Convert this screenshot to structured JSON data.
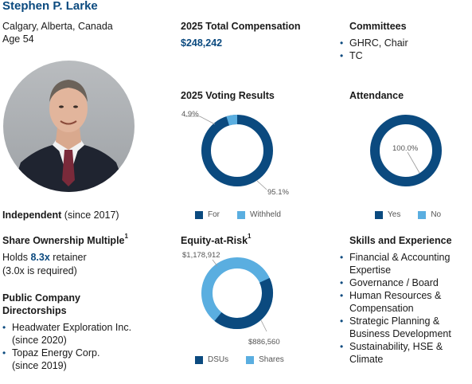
{
  "profile": {
    "name": "Stephen P. Larke",
    "location": "Calgary, Alberta, Canada",
    "age": "Age 54",
    "independent_label": "Independent",
    "independent_since": "(since 2017)"
  },
  "share_ownership": {
    "heading": "Share Ownership Multiple",
    "heading_sup": "1",
    "holds_prefix": "Holds",
    "multiple": "8.3x",
    "holds_suffix": "retainer",
    "required": "(3.0x is required)"
  },
  "directorships": {
    "heading_line1": "Public Company",
    "heading_line2": "Directorships",
    "items": [
      {
        "line1": "Headwater Exploration Inc.",
        "line2": "(since 2020)"
      },
      {
        "line1": "Topaz Energy Corp.",
        "line2": "(since 2019)"
      }
    ]
  },
  "compensation": {
    "heading": "2025 Total Compensation",
    "value": "$248,242"
  },
  "committees": {
    "heading": "Committees",
    "items": [
      "GHRC, Chair",
      "TC"
    ]
  },
  "voting": {
    "heading": "2025 Voting Results",
    "for_label": "95.1%",
    "withheld_label": "4.9%",
    "legend_for": "For",
    "legend_withheld": "Withheld"
  },
  "attendance": {
    "heading": "Attendance",
    "yes_label": "100.0%",
    "legend_yes": "Yes",
    "legend_no": "No"
  },
  "equity": {
    "heading": "Equity-at-Risk",
    "heading_sup": "1",
    "shares_label": "$1,178,912",
    "dsus_label": "$886,560",
    "legend_dsus": "DSUs",
    "legend_shares": "Shares"
  },
  "skills": {
    "heading": "Skills and Experience",
    "items": [
      {
        "line1": "Financial & Accounting",
        "line2": "Expertise"
      },
      {
        "line1": "Governance / Board",
        "line2": ""
      },
      {
        "line1": "Human Resources &",
        "line2": "Compensation"
      },
      {
        "line1": "Strategic Planning &",
        "line2": "Business Development"
      },
      {
        "line1": "Sustainability, HSE &",
        "line2": "Climate"
      }
    ]
  },
  "colors": {
    "dark_blue": "#0b4a7f",
    "light_blue": "#5aaee0"
  },
  "chart_data": [
    {
      "type": "pie",
      "title": "2025 Voting Results",
      "categories": [
        "For",
        "Withheld"
      ],
      "values": [
        95.1,
        4.9
      ],
      "data_labels": [
        "95.1%",
        "4.9%"
      ]
    },
    {
      "type": "pie",
      "title": "Attendance",
      "categories": [
        "Yes",
        "No"
      ],
      "values": [
        100.0,
        0.0
      ],
      "data_labels": [
        "100.0%"
      ]
    },
    {
      "type": "pie",
      "title": "Equity-at-Risk",
      "categories": [
        "DSUs",
        "Shares"
      ],
      "values": [
        886560,
        1178912
      ],
      "data_labels": [
        "$886,560",
        "$1,178,912"
      ]
    }
  ]
}
